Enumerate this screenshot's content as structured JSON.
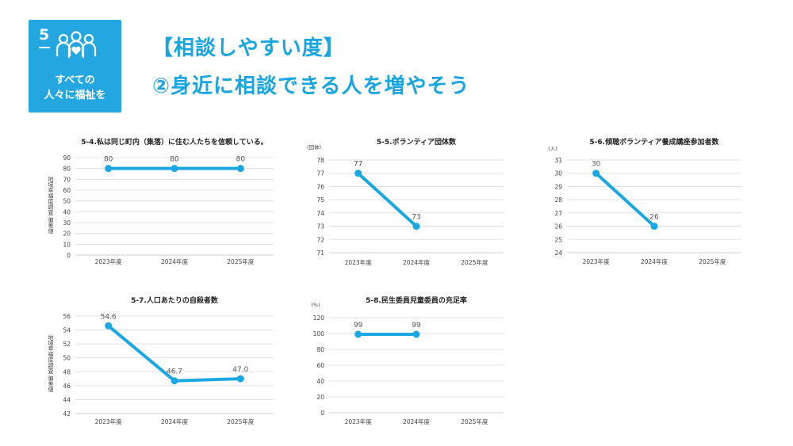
{
  "sdg": {
    "number": "5",
    "lines": [
      "すべての",
      "人々に福祉を"
    ],
    "icon": "people-heart-icon"
  },
  "header": {
    "title_line1": "【相談しやすい度】",
    "title_line2": "②身近に相談できる人を増やそう"
  },
  "colors": {
    "accent": "#19a5e0",
    "series": "#1aa7e2",
    "grid": "#d9d9d9"
  },
  "chart_data": [
    {
      "id": "c54",
      "type": "line",
      "title": "5-4.私は同じ町内（集落）に住む人たちを信頼している。",
      "categories": [
        "2023年度",
        "2024年度",
        "2025年度"
      ],
      "values": [
        80,
        80,
        80
      ],
      "labels": [
        "80",
        "80",
        "80"
      ],
      "yticks": [
        0,
        10,
        20,
        30,
        40,
        50,
        60,
        70,
        80,
        90
      ],
      "ylim": [
        0,
        90
      ],
      "ylabel": "地域幸福度調査 偏差値",
      "unit": ""
    },
    {
      "id": "c55",
      "type": "line",
      "title": "5-5.ボランティア団体数",
      "categories": [
        "2023年度",
        "2024年度",
        "2025年度"
      ],
      "values": [
        77,
        73,
        null
      ],
      "labels": [
        "77",
        "73",
        ""
      ],
      "yticks": [
        71,
        72,
        73,
        74,
        75,
        76,
        77,
        78
      ],
      "ylim": [
        71,
        78
      ],
      "ylabel": "",
      "unit": "(団体)"
    },
    {
      "id": "c56",
      "type": "line",
      "title": "5-6.傾聴ボランティア養成講座参加者数",
      "categories": [
        "2023年度",
        "2024年度",
        "2025年度"
      ],
      "values": [
        30,
        26,
        null
      ],
      "labels": [
        "30",
        "26",
        ""
      ],
      "yticks": [
        24,
        25,
        26,
        27,
        28,
        29,
        30,
        31
      ],
      "ylim": [
        24,
        31
      ],
      "ylabel": "",
      "unit": "(人)"
    },
    {
      "id": "c57",
      "type": "line",
      "title": "5-7.人口あたりの自殺者数",
      "categories": [
        "2023年度",
        "2024年度",
        "2025年度"
      ],
      "values": [
        54.6,
        46.7,
        47.0
      ],
      "labels": [
        "54.6",
        "46.7",
        "47.0"
      ],
      "yticks": [
        42,
        44,
        46,
        48,
        50,
        52,
        54,
        56
      ],
      "ylim": [
        42,
        56
      ],
      "ylabel": "地域幸福度調査 偏差値",
      "unit": ""
    },
    {
      "id": "c58",
      "type": "line",
      "title": "5-8.民生委員児童委員の充足率",
      "categories": [
        "2023年度",
        "2024年度",
        "2025年度"
      ],
      "values": [
        99,
        99,
        null
      ],
      "labels": [
        "99",
        "99",
        ""
      ],
      "yticks": [
        0,
        20,
        40,
        60,
        80,
        100,
        120
      ],
      "ylim": [
        0,
        120
      ],
      "ylabel": "",
      "unit": "(%)"
    }
  ]
}
